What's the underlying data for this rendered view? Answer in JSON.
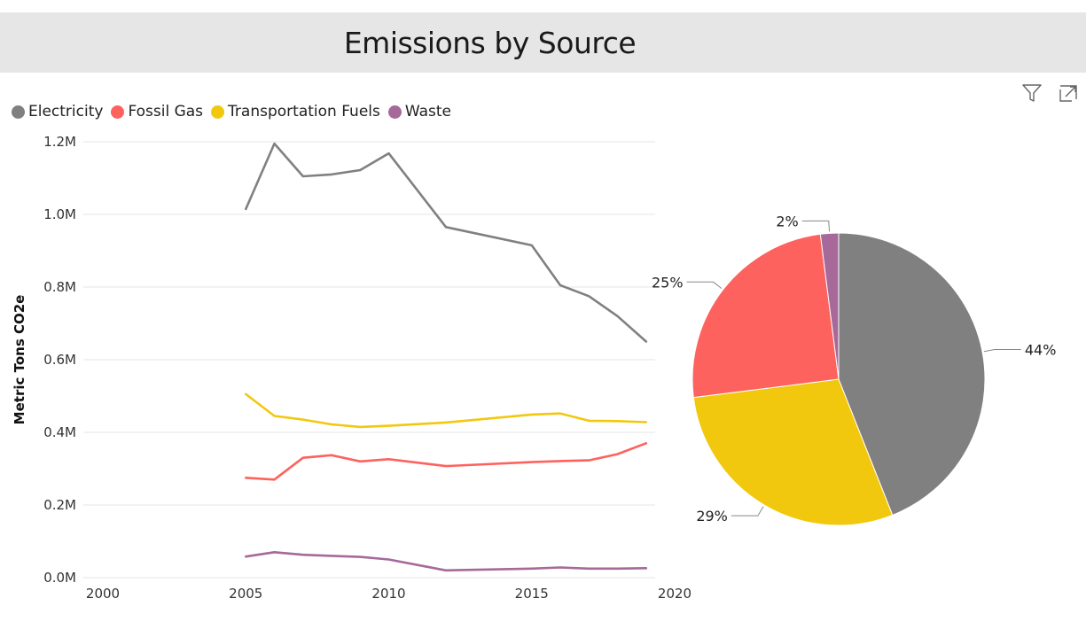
{
  "header": {
    "title": "Emissions by Source"
  },
  "icons": {
    "filter": "filter-icon",
    "focus": "focus-mode-icon"
  },
  "chart_data": [
    {
      "type": "line",
      "title": "",
      "ylabel": "Metric Tons CO2e",
      "xlabel": "",
      "xlim": [
        2000,
        2020
      ],
      "ylim": [
        0,
        1200000
      ],
      "x_ticks": [
        2000,
        2005,
        2010,
        2015,
        2020
      ],
      "x_tick_labels": [
        "2000",
        "2005",
        "2010",
        "2015",
        "2020"
      ],
      "y_ticks": [
        0,
        200000,
        400000,
        600000,
        800000,
        1000000,
        1200000
      ],
      "y_tick_labels": [
        "0.0M",
        "0.2M",
        "0.4M",
        "0.6M",
        "0.8M",
        "1.0M",
        "1.2M"
      ],
      "grid": true,
      "legend_position": "top-left",
      "series": [
        {
          "name": "Electricity",
          "color": "#808080",
          "x": [
            2005,
            2006,
            2007,
            2008,
            2009,
            2010,
            2012,
            2015,
            2016,
            2017,
            2018,
            2019
          ],
          "values": [
            1015000,
            1195000,
            1105000,
            1110000,
            1122000,
            1168000,
            965000,
            915000,
            805000,
            775000,
            720000,
            650000
          ]
        },
        {
          "name": "Fossil Gas",
          "color": "#fd625e",
          "x": [
            2005,
            2006,
            2007,
            2008,
            2009,
            2010,
            2012,
            2015,
            2016,
            2017,
            2018,
            2019
          ],
          "values": [
            275000,
            270000,
            330000,
            337000,
            320000,
            326000,
            307000,
            318000,
            321000,
            323000,
            340000,
            370000
          ]
        },
        {
          "name": "Transportation Fuels",
          "color": "#f2c80f",
          "x": [
            2005,
            2006,
            2007,
            2008,
            2009,
            2010,
            2012,
            2015,
            2016,
            2017,
            2018,
            2019
          ],
          "values": [
            505000,
            445000,
            435000,
            422000,
            415000,
            418000,
            427000,
            449000,
            452000,
            432000,
            431000,
            428000
          ]
        },
        {
          "name": "Waste",
          "color": "#a66999",
          "x": [
            2005,
            2006,
            2007,
            2008,
            2009,
            2010,
            2012,
            2015,
            2016,
            2017,
            2018,
            2019
          ],
          "values": [
            58000,
            70000,
            63000,
            60000,
            57000,
            50000,
            20000,
            25000,
            28000,
            25000,
            25000,
            26000
          ]
        }
      ]
    },
    {
      "type": "pie",
      "title": "",
      "slices": [
        {
          "name": "Electricity",
          "value": 44,
          "label": "44%",
          "color": "#808080"
        },
        {
          "name": "Transportation Fuels",
          "value": 29,
          "label": "29%",
          "color": "#f2c80f"
        },
        {
          "name": "Fossil Gas",
          "value": 25,
          "label": "25%",
          "color": "#fd625e"
        },
        {
          "name": "Waste",
          "value": 2,
          "label": "2%",
          "color": "#a66999"
        }
      ]
    }
  ]
}
